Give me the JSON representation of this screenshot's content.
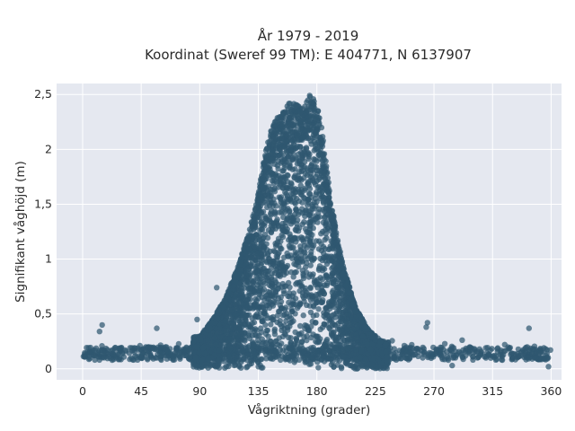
{
  "chart_data": {
    "type": "scatter",
    "title_line1": "År 1979 - 2019",
    "title_line2": "Koordinat (Sweref 99 TM): E 404771, N 6137907",
    "xlabel": "Vågriktning (grader)",
    "ylabel": "Signifikant våghöjd (m)",
    "xlim": [
      -20,
      368
    ],
    "ylim": [
      -0.1,
      2.6
    ],
    "x_ticks": [
      0,
      45,
      90,
      135,
      180,
      225,
      270,
      315,
      360
    ],
    "x_tick_labels": [
      "0",
      "45",
      "90",
      "135",
      "180",
      "225",
      "270",
      "315",
      "360"
    ],
    "y_ticks": [
      0,
      0.5,
      1,
      1.5,
      2,
      2.5
    ],
    "y_tick_labels": [
      "0",
      "0,5",
      "1",
      "1,5",
      "2",
      "2,5"
    ],
    "grid": true,
    "background": "#e5e8f0",
    "marker_color": "#2f5870",
    "envelope": {
      "direction": [
        0,
        45,
        90,
        100,
        110,
        120,
        130,
        135,
        140,
        145,
        150,
        155,
        160,
        165,
        170,
        175,
        180,
        185,
        190,
        195,
        200,
        210,
        220,
        230,
        270,
        315,
        360
      ],
      "max_height": [
        0.2,
        0.22,
        0.3,
        0.45,
        0.65,
        0.95,
        1.35,
        1.6,
        1.95,
        2.2,
        2.3,
        2.35,
        2.45,
        2.4,
        2.45,
        2.5,
        2.45,
        2.1,
        1.6,
        1.25,
        0.95,
        0.55,
        0.35,
        0.25,
        0.2,
        0.2,
        0.22
      ]
    },
    "outliers": [
      {
        "x": 15,
        "y": 0.4
      },
      {
        "x": 13,
        "y": 0.34
      },
      {
        "x": 57,
        "y": 0.37
      },
      {
        "x": 88,
        "y": 0.45
      },
      {
        "x": 103,
        "y": 0.74
      },
      {
        "x": 265,
        "y": 0.42
      },
      {
        "x": 264,
        "y": 0.38
      },
      {
        "x": 343,
        "y": 0.37
      },
      {
        "x": 358,
        "y": 0.02
      },
      {
        "x": 284,
        "y": 0.03
      }
    ]
  }
}
